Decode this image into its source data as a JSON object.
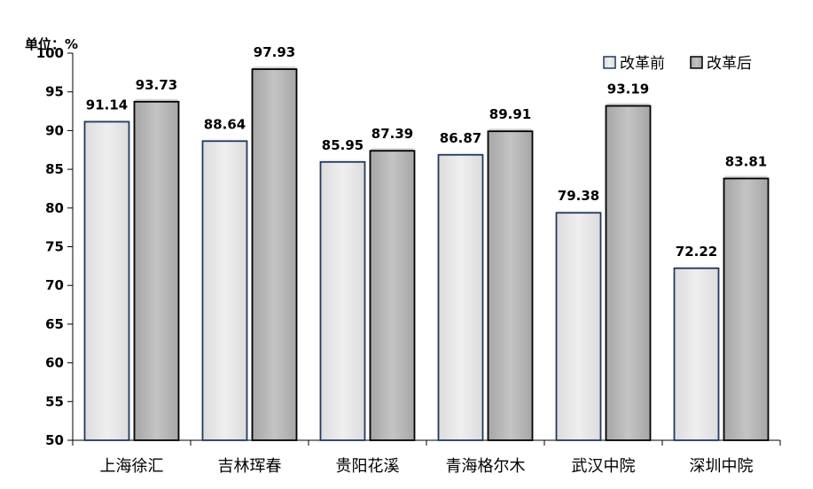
{
  "chart_data": {
    "type": "bar",
    "unit_label": "单位：%",
    "categories": [
      "上海徐汇",
      "吉林珲春",
      "贵阳花溪",
      "青海格尔木",
      "武汉中院",
      "深圳中院"
    ],
    "series": [
      {
        "name": "改革前",
        "values": [
          91.14,
          88.64,
          85.95,
          86.87,
          79.38,
          72.22
        ],
        "color": "#e8e8e8"
      },
      {
        "name": "改革后",
        "values": [
          93.73,
          97.93,
          87.39,
          89.91,
          93.19,
          83.81
        ],
        "color": "#b5b5b5"
      }
    ],
    "yticks": [
      "50",
      "55",
      "60",
      "65",
      "70",
      "75",
      "80",
      "85",
      "90",
      "95",
      "100"
    ],
    "ylim": [
      50,
      100
    ],
    "legend_position": "top-right",
    "grid": false
  }
}
